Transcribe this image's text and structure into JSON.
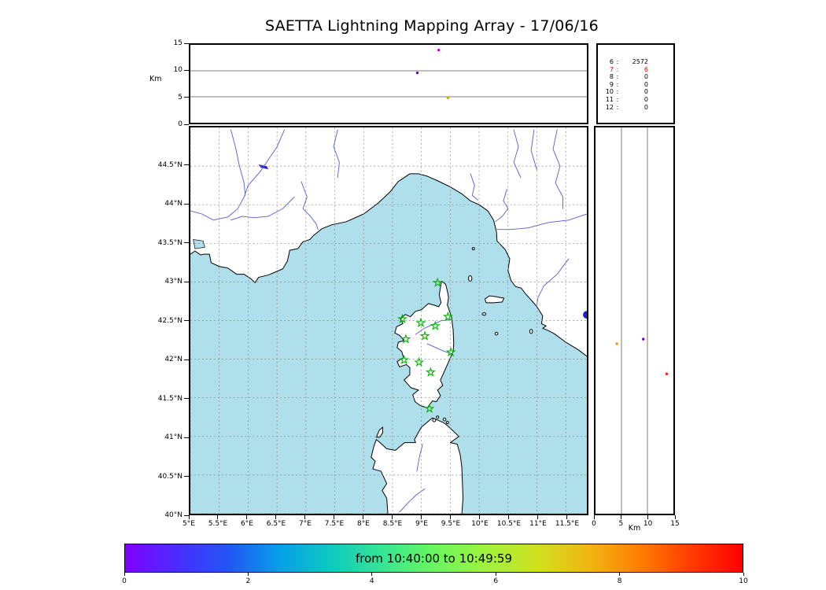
{
  "title": "SAETTA Lightning Mapping Array - 17/06/16",
  "colors": {
    "sea": "#afdfeb",
    "land": "#ffffff",
    "coast": "#000000",
    "river": "#5b5bd0",
    "lake": "#2020c8",
    "grid": "#8a8a8a",
    "station_marker": "#00b400",
    "highlight": "#ff0000"
  },
  "chart_data": [
    {
      "name": "altitude_vs_longitude",
      "type": "scatter",
      "ylabel": "Km",
      "xlim": [
        5,
        11.865
      ],
      "ylim": [
        0,
        15
      ],
      "yticks": [
        "15",
        "10",
        "5",
        "0"
      ],
      "grid": "horizontal lines at 5 and 10 km",
      "points": [
        {
          "x": 9.3,
          "y": 14.0,
          "color": "#cc00cc"
        },
        {
          "x": 8.93,
          "y": 9.6,
          "color": "#5a00c8"
        },
        {
          "x": 9.46,
          "y": 4.8,
          "color": "#b9b400"
        }
      ]
    },
    {
      "name": "plan_view_map",
      "type": "scatter",
      "xlim": [
        5,
        11.865
      ],
      "ylim": [
        40,
        45
      ],
      "xticks": [
        "5°E",
        "5.5°E",
        "6°E",
        "6.5°E",
        "7°E",
        "7.5°E",
        "8°E",
        "8.5°E",
        "9°E",
        "9.5°E",
        "10°E",
        "10.5°E",
        "11°E",
        "11.5°E"
      ],
      "yticks": [
        "44.5°N",
        "44°N",
        "43.5°N",
        "43°N",
        "42.5°N",
        "42°N",
        "41.5°N",
        "41°N",
        "40.5°N",
        "40°N"
      ],
      "grid": "dashed graticule every 0.5 degree",
      "marker": "star",
      "stations": [
        [
          9.28,
          42.99
        ],
        [
          8.67,
          42.52
        ],
        [
          8.99,
          42.47
        ],
        [
          9.24,
          42.43
        ],
        [
          9.46,
          42.55
        ],
        [
          8.73,
          42.26
        ],
        [
          9.06,
          42.3
        ],
        [
          9.51,
          42.09
        ],
        [
          8.7,
          41.99
        ],
        [
          8.96,
          41.96
        ],
        [
          9.16,
          41.83
        ],
        [
          9.14,
          41.36
        ]
      ]
    },
    {
      "name": "sources_per_station_count",
      "type": "table",
      "rows": [
        [
          "6",
          "2572"
        ],
        [
          "7",
          "6"
        ],
        [
          "8",
          "0"
        ],
        [
          "9",
          "0"
        ],
        [
          "10",
          "0"
        ],
        [
          "11",
          "0"
        ],
        [
          "12",
          "0"
        ]
      ],
      "highlight_value": "7",
      "highlight_color": "#ff0000"
    },
    {
      "name": "altitude_vs_latitude",
      "type": "scatter",
      "xlabel": "Km",
      "xlim": [
        0,
        15
      ],
      "ylim": [
        40,
        45
      ],
      "xticks": [
        "0",
        "5",
        "10",
        "15"
      ],
      "grid": "vertical lines at 5 and 10 km",
      "points": [
        {
          "x": 4.1,
          "y": 42.2,
          "color": "#ff8c00"
        },
        {
          "x": 9.2,
          "y": 42.26,
          "color": "#6a00c8"
        },
        {
          "x": 13.7,
          "y": 41.81,
          "color": "#ff2000"
        }
      ]
    },
    {
      "name": "time_colorbar",
      "type": "colorbar",
      "label": "from 10:40:00 to 10:49:59",
      "lim": [
        0,
        10
      ],
      "ticks": [
        "0",
        "2",
        "4",
        "6",
        "8",
        "10"
      ],
      "colors": [
        "#7f00ff",
        "#4b2cfc",
        "#2156f5",
        "#069fe8",
        "#0ec9c0",
        "#35e694",
        "#68f75e",
        "#9ef33c",
        "#cfe01f",
        "#f0b713",
        "#ff7d00",
        "#ff3c00",
        "#ff0000"
      ]
    }
  ]
}
